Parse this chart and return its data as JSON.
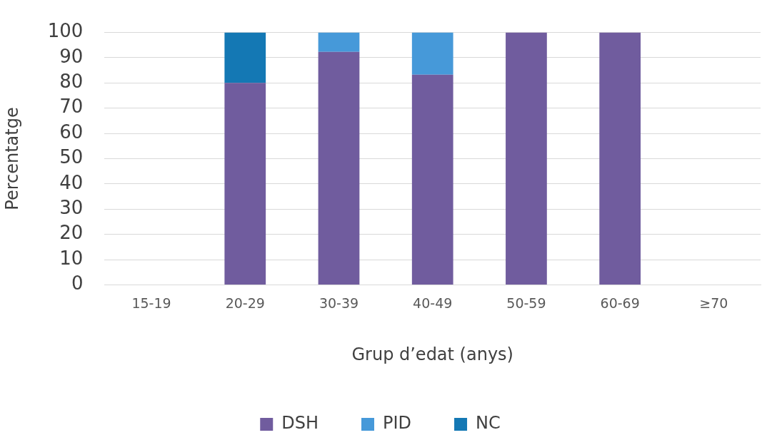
{
  "chart_data": {
    "type": "bar",
    "stacked": true,
    "xlabel": "Grup d’edat (anys)",
    "ylabel": "Percentatge",
    "categories": [
      "15-19",
      "20-29",
      "30-39",
      "40-49",
      "50-59",
      "60-69",
      "≥70"
    ],
    "series": [
      {
        "name": "DSH",
        "color": "#705c9e",
        "values": [
          null,
          80,
          92.3,
          83.3,
          100,
          100,
          null
        ]
      },
      {
        "name": "PID",
        "color": "#4699d9",
        "values": [
          null,
          null,
          7.7,
          16.7,
          null,
          null,
          null
        ]
      },
      {
        "name": "NC",
        "color": "#1478b4",
        "values": [
          null,
          20,
          null,
          null,
          null,
          null,
          null
        ]
      }
    ],
    "ylim": [
      0,
      100
    ],
    "yticks": [
      0,
      10,
      20,
      30,
      40,
      50,
      60,
      70,
      80,
      90,
      100
    ],
    "grid": "y",
    "legend": "bottom"
  }
}
